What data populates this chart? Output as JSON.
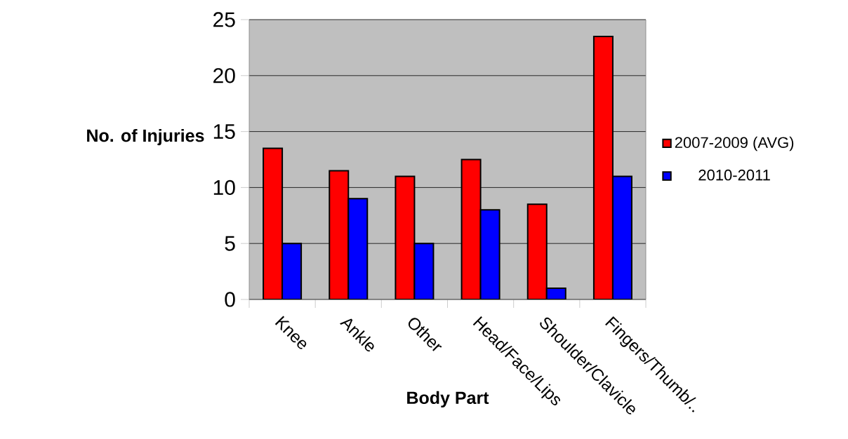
{
  "chart_data": {
    "type": "bar",
    "xlabel": "Body Part",
    "ylabel": "No. of Injuries",
    "categories": [
      "Knee",
      "Ankle",
      "Other",
      "Head/Face/Lips",
      "Shoulder/Clavicle",
      "Fingers/Thumb/.."
    ],
    "series": [
      {
        "name": "2007-2009 (AVG)",
        "color": "#ff0000",
        "values": [
          13.5,
          11.5,
          11,
          12.5,
          8.5,
          23.5
        ]
      },
      {
        "name": "2010-2011",
        "color": "#0000ff",
        "values": [
          5,
          9,
          5,
          8,
          1,
          11
        ]
      }
    ],
    "ylim": [
      0,
      25
    ],
    "yticks": [
      0,
      5,
      10,
      15,
      20,
      25
    ],
    "grid": "y",
    "legend": "right"
  }
}
